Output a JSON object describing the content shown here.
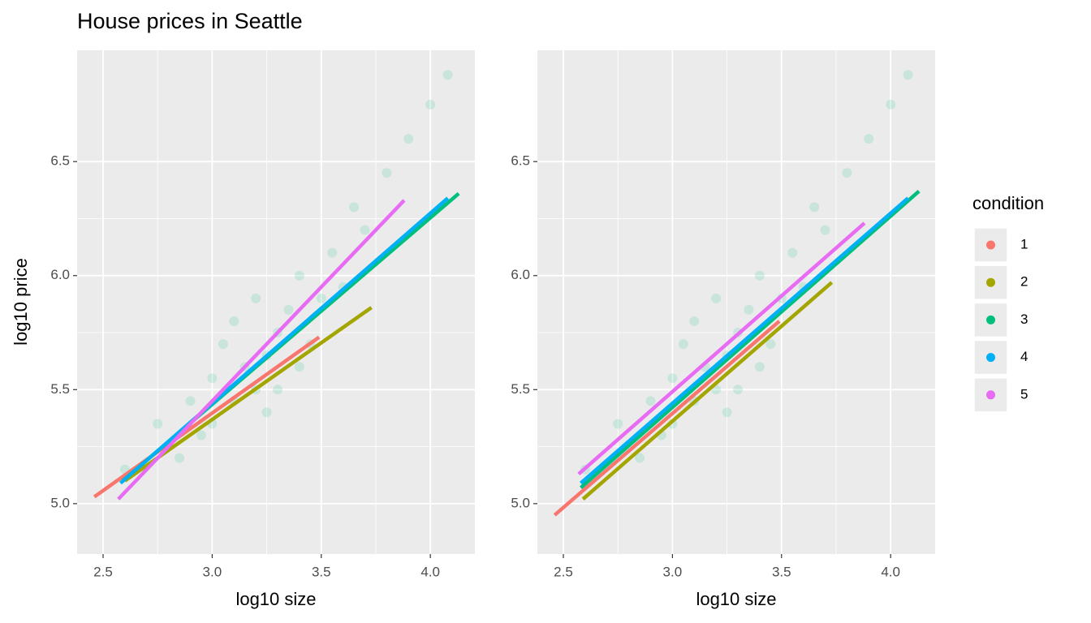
{
  "chart_data": [
    {
      "type": "line",
      "title": "House prices in Seattle",
      "xlabel": "log10 size",
      "ylabel": "log10 price",
      "xlim": [
        2.381,
        4.204
      ],
      "ylim": [
        4.779,
        6.988
      ],
      "xticks": [
        {
          "value": 2.5,
          "label": "2.5"
        },
        {
          "value": 3,
          "label": "3.0"
        },
        {
          "value": 3.5,
          "label": "3.5"
        },
        {
          "value": 4,
          "label": "4.0"
        }
      ],
      "yticks": [
        {
          "value": 5,
          "label": "5.0"
        },
        {
          "value": 5.5,
          "label": "5.5"
        },
        {
          "value": 6,
          "label": "6.0"
        },
        {
          "value": 6.5,
          "label": "6.5"
        }
      ],
      "grid": true,
      "legend_title": "condition",
      "legend": "right",
      "scatter": {
        "color": "#00BF7D",
        "x": [
          2.75,
          2.85,
          2.9,
          2.95,
          3.0,
          3.0,
          3.05,
          3.1,
          3.1,
          3.15,
          3.2,
          3.2,
          3.25,
          3.25,
          3.3,
          3.3,
          3.35,
          3.4,
          3.4,
          3.45,
          3.5,
          3.55,
          3.6,
          3.65,
          3.7,
          3.8,
          3.9,
          4.0,
          4.08,
          2.6
        ],
        "values": [
          5.35,
          5.2,
          5.45,
          5.3,
          5.55,
          5.35,
          5.7,
          5.45,
          5.8,
          5.6,
          5.5,
          5.9,
          5.65,
          5.4,
          5.75,
          5.5,
          5.85,
          5.6,
          6.0,
          5.7,
          5.9,
          6.1,
          5.95,
          6.3,
          6.2,
          6.45,
          6.6,
          6.75,
          6.88,
          5.15
        ]
      },
      "series": [
        {
          "name": "1",
          "color": "#F8766D",
          "x": [
            2.46,
            3.49
          ],
          "values": [
            5.03,
            5.73
          ]
        },
        {
          "name": "2",
          "color": "#A3A500",
          "x": [
            2.6,
            3.73
          ],
          "values": [
            5.1,
            5.86
          ]
        },
        {
          "name": "3",
          "color": "#00BF7D",
          "x": [
            2.59,
            4.13
          ],
          "values": [
            5.1,
            6.36
          ]
        },
        {
          "name": "4",
          "color": "#00B0F6",
          "x": [
            2.58,
            4.08
          ],
          "values": [
            5.09,
            6.34
          ]
        },
        {
          "name": "5",
          "color": "#E76BF3",
          "x": [
            2.57,
            3.88
          ],
          "values": [
            5.02,
            6.33
          ]
        }
      ]
    },
    {
      "type": "line",
      "xlabel": "log10 size",
      "xlim": [
        2.381,
        4.204
      ],
      "ylim": [
        4.779,
        6.988
      ],
      "xticks": [
        {
          "value": 2.5,
          "label": "2.5"
        },
        {
          "value": 3,
          "label": "3.0"
        },
        {
          "value": 3.5,
          "label": "3.5"
        },
        {
          "value": 4,
          "label": "4.0"
        }
      ],
      "yticks": [
        {
          "value": 5,
          "label": "5.0"
        },
        {
          "value": 5.5,
          "label": "5.5"
        },
        {
          "value": 6,
          "label": "6.0"
        },
        {
          "value": 6.5,
          "label": "6.5"
        }
      ],
      "grid": true,
      "scatter": {
        "color": "#00BF7D",
        "x": [
          2.75,
          2.85,
          2.9,
          2.95,
          3.0,
          3.0,
          3.05,
          3.1,
          3.1,
          3.15,
          3.2,
          3.2,
          3.25,
          3.25,
          3.3,
          3.3,
          3.35,
          3.4,
          3.4,
          3.45,
          3.5,
          3.55,
          3.6,
          3.65,
          3.7,
          3.8,
          3.9,
          4.0,
          4.08,
          2.6
        ],
        "values": [
          5.35,
          5.2,
          5.45,
          5.3,
          5.55,
          5.35,
          5.7,
          5.45,
          5.8,
          5.6,
          5.5,
          5.9,
          5.65,
          5.4,
          5.75,
          5.5,
          5.85,
          5.6,
          6.0,
          5.7,
          5.9,
          6.1,
          5.95,
          6.3,
          6.2,
          6.45,
          6.6,
          6.75,
          6.88,
          5.15
        ]
      },
      "series": [
        {
          "color": "#F8766D",
          "x": [
            2.46,
            3.49
          ],
          "values": [
            4.95,
            5.8
          ]
        },
        {
          "color": "#A3A500",
          "x": [
            2.59,
            3.73
          ],
          "values": [
            5.02,
            5.97
          ]
        },
        {
          "color": "#00BF7D",
          "x": [
            2.58,
            4.13
          ],
          "values": [
            5.07,
            6.37
          ]
        },
        {
          "color": "#00B0F6",
          "x": [
            2.58,
            4.08
          ],
          "values": [
            5.09,
            6.34
          ]
        },
        {
          "color": "#E76BF3",
          "x": [
            2.57,
            3.88
          ],
          "values": [
            5.13,
            6.23
          ]
        }
      ]
    }
  ]
}
